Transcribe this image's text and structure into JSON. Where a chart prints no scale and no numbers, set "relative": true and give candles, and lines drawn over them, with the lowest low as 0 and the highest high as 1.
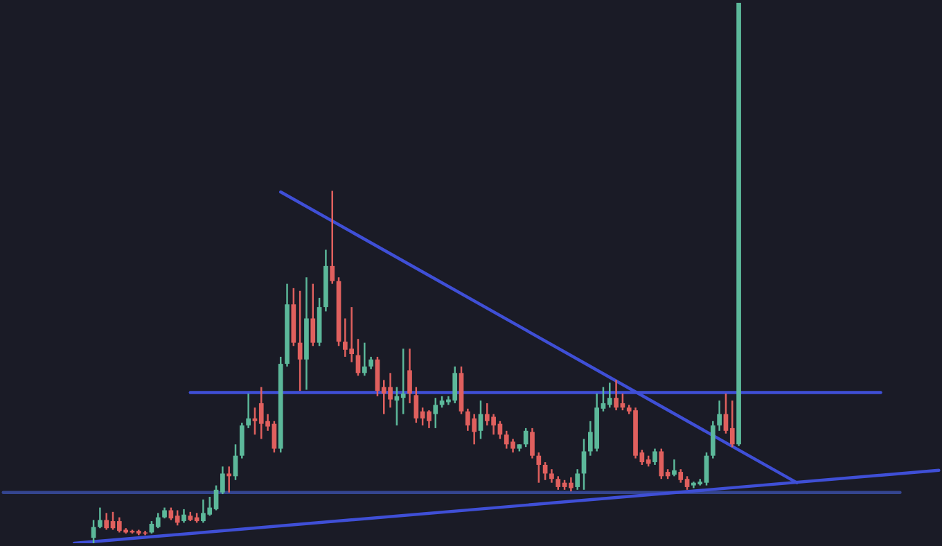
{
  "chart_data": {
    "type": "candlestick",
    "relative": true,
    "categories": [
      null,
      null,
      null,
      null,
      null,
      null,
      null,
      null,
      null,
      null,
      null,
      null,
      null,
      null,
      null,
      null,
      null,
      null,
      null,
      null,
      null,
      null,
      null,
      null,
      null,
      null,
      null,
      null,
      null,
      null,
      null,
      null,
      null,
      null,
      null,
      null,
      null,
      null,
      null,
      null,
      null,
      null,
      null,
      null,
      null,
      null,
      null,
      null,
      null,
      null,
      null,
      null,
      null,
      null,
      null,
      null,
      null,
      null,
      null,
      null,
      null,
      null,
      null,
      null,
      null,
      null,
      null,
      null,
      null,
      null,
      null,
      null,
      null,
      null,
      null,
      null,
      null,
      null,
      null,
      null,
      null,
      null,
      null,
      null,
      null,
      null,
      null,
      null,
      null,
      null,
      null,
      null,
      null,
      null,
      null,
      null,
      null,
      null,
      null,
      null,
      null,
      null,
      null,
      null,
      null,
      null,
      null,
      null,
      null,
      null,
      null,
      null,
      null,
      null,
      null,
      null,
      null,
      null,
      null,
      null,
      null,
      null,
      null,
      null,
      null,
      null,
      null,
      null,
      null,
      null,
      null,
      null,
      null,
      null,
      null,
      null,
      null,
      null,
      null,
      null,
      null,
      null,
      null,
      null,
      null,
      null
    ],
    "ohlc": [
      null,
      null,
      null,
      null,
      null,
      null,
      null,
      null,
      null,
      null,
      null,
      null,
      null,
      null,
      [
        0.01,
        0.043,
        0,
        0.03
      ],
      [
        0.03,
        0.066,
        0.028,
        0.043
      ],
      [
        0.043,
        0.056,
        0.025,
        0.028
      ],
      [
        0.041,
        0.058,
        0.025,
        0.028
      ],
      [
        0.041,
        0.048,
        0.02,
        0.023
      ],
      [
        0.025,
        0.028,
        0.018,
        0.02
      ],
      [
        0.023,
        0.025,
        0.018,
        0.02
      ],
      [
        0.023,
        0.025,
        0.015,
        0.018
      ],
      [
        0.02,
        0.023,
        0.015,
        0.018
      ],
      [
        0.02,
        0.041,
        0.018,
        0.036
      ],
      [
        0.03,
        0.056,
        0.028,
        0.048
      ],
      [
        0.048,
        0.066,
        0.046,
        0.061
      ],
      [
        0.061,
        0.066,
        0.043,
        0.046
      ],
      [
        0.051,
        0.061,
        0.033,
        0.038
      ],
      [
        0.041,
        0.063,
        0.038,
        0.053
      ],
      [
        0.051,
        0.058,
        0.041,
        0.043
      ],
      [
        0.048,
        0.056,
        0.038,
        0.041
      ],
      [
        0.041,
        0.081,
        0.038,
        0.056
      ],
      [
        0.053,
        0.086,
        0.051,
        0.066
      ],
      [
        0.063,
        0.107,
        0.061,
        0.099
      ],
      [
        0.094,
        0.142,
        0.091,
        0.129
      ],
      [
        0.129,
        0.142,
        0.094,
        0.124
      ],
      [
        0.124,
        0.183,
        0.117,
        0.162
      ],
      [
        0.162,
        0.223,
        0.157,
        0.218
      ],
      [
        0.218,
        0.277,
        0.213,
        0.231
      ],
      [
        0.231,
        0.251,
        0.201,
        0.226
      ],
      [
        0.259,
        0.289,
        0.193,
        0.221
      ],
      [
        0.226,
        0.239,
        0.208,
        0.216
      ],
      [
        0.221,
        0.226,
        0.168,
        0.175
      ],
      [
        0.175,
        0.345,
        0.168,
        0.332
      ],
      [
        0.332,
        0.48,
        0.327,
        0.442
      ],
      [
        0.442,
        0.472,
        0.365,
        0.371
      ],
      [
        0.371,
        0.467,
        0.282,
        0.34
      ],
      [
        0.34,
        0.492,
        0.284,
        0.416
      ],
      [
        0.416,
        0.48,
        0.365,
        0.371
      ],
      [
        0.371,
        0.454,
        0.365,
        0.437
      ],
      [
        0.437,
        0.543,
        0.429,
        0.513
      ],
      [
        0.513,
        0.652,
        0.48,
        0.485
      ],
      [
        0.485,
        0.492,
        0.365,
        0.373
      ],
      [
        0.373,
        0.416,
        0.345,
        0.358
      ],
      [
        0.36,
        0.437,
        0.335,
        0.35
      ],
      [
        0.348,
        0.378,
        0.31,
        0.315
      ],
      [
        0.315,
        0.371,
        0.31,
        0.327
      ],
      [
        0.327,
        0.345,
        0.322,
        0.34
      ],
      [
        0.34,
        0.345,
        0.272,
        0.282
      ],
      [
        0.289,
        0.302,
        0.239,
        0.277
      ],
      [
        0.289,
        0.315,
        0.251,
        0.266
      ],
      [
        0.264,
        0.289,
        0.218,
        0.272
      ],
      [
        0.269,
        0.36,
        0.239,
        0.277
      ],
      [
        0.32,
        0.36,
        0.259,
        0.277
      ],
      [
        0.274,
        0.289,
        0.223,
        0.231
      ],
      [
        0.244,
        0.251,
        0.218,
        0.231
      ],
      [
        0.244,
        0.246,
        0.213,
        0.226
      ],
      [
        0.239,
        0.269,
        0.213,
        0.256
      ],
      [
        0.256,
        0.272,
        0.251,
        0.264
      ],
      [
        0.261,
        0.272,
        0.256,
        0.266
      ],
      [
        0.264,
        0.327,
        0.259,
        0.315
      ],
      [
        0.315,
        0.327,
        0.239,
        0.244
      ],
      [
        0.244,
        0.249,
        0.208,
        0.218
      ],
      [
        0.231,
        0.239,
        0.183,
        0.206
      ],
      [
        0.208,
        0.264,
        0.193,
        0.239
      ],
      [
        0.239,
        0.259,
        0.218,
        0.226
      ],
      [
        0.234,
        0.239,
        0.201,
        0.218
      ],
      [
        0.221,
        0.226,
        0.193,
        0.201
      ],
      [
        0.201,
        0.208,
        0.175,
        0.183
      ],
      [
        0.188,
        0.193,
        0.168,
        0.175
      ],
      [
        0.175,
        0.183,
        0.17,
        0.183
      ],
      [
        0.183,
        0.213,
        0.178,
        0.208
      ],
      [
        0.206,
        0.213,
        0.157,
        0.162
      ],
      [
        0.162,
        0.168,
        0.112,
        0.145
      ],
      [
        0.145,
        0.15,
        0.117,
        0.129
      ],
      [
        0.129,
        0.137,
        0.112,
        0.119
      ],
      [
        0.119,
        0.124,
        0.099,
        0.104
      ],
      [
        0.112,
        0.117,
        0.099,
        0.104
      ],
      [
        0.112,
        0.122,
        0.096,
        0.102
      ],
      [
        0.104,
        0.137,
        0.099,
        0.129
      ],
      [
        0.129,
        0.193,
        0.099,
        0.17
      ],
      [
        0.17,
        0.226,
        0.162,
        0.206
      ],
      [
        0.175,
        0.277,
        0.17,
        0.251
      ],
      [
        0.249,
        0.289,
        0.244,
        0.259
      ],
      [
        0.256,
        0.297,
        0.251,
        0.269
      ],
      [
        0.269,
        0.302,
        0.246,
        0.251
      ],
      [
        0.259,
        0.277,
        0.246,
        0.251
      ],
      [
        0.251,
        0.256,
        0.239,
        0.244
      ],
      [
        0.246,
        0.251,
        0.157,
        0.162
      ],
      [
        0.168,
        0.173,
        0.145,
        0.15
      ],
      [
        0.155,
        0.162,
        0.142,
        0.147
      ],
      [
        0.15,
        0.175,
        0.145,
        0.17
      ],
      [
        0.17,
        0.175,
        0.119,
        0.124
      ],
      [
        0.132,
        0.137,
        0.119,
        0.124
      ],
      [
        0.127,
        0.155,
        0.124,
        0.135
      ],
      [
        0.132,
        0.137,
        0.112,
        0.117
      ],
      [
        0.119,
        0.124,
        0.099,
        0.104
      ],
      [
        0.107,
        0.114,
        0.102,
        0.112
      ],
      [
        0.109,
        0.119,
        0.107,
        0.114
      ],
      [
        0.112,
        0.168,
        0.107,
        0.162
      ],
      [
        0.162,
        0.226,
        0.157,
        0.218
      ],
      [
        0.218,
        0.264,
        0.208,
        0.239
      ],
      [
        0.239,
        0.277,
        0.203,
        0.208
      ],
      [
        0.213,
        0.264,
        0.178,
        0.183
      ],
      [
        0.183,
        1,
        0.18,
        1
      ],
      null,
      null,
      null,
      null,
      null,
      null,
      null,
      null,
      null,
      null,
      null,
      null,
      null,
      null,
      null,
      null,
      null,
      null,
      null,
      null,
      null,
      null,
      null,
      null,
      null,
      null,
      null,
      null,
      null,
      null,
      null
    ],
    "colors": [
      null,
      null,
      null,
      null,
      null,
      null,
      null,
      null,
      null,
      null,
      null,
      null,
      null,
      null,
      "#5cb89a",
      "#5cb89a",
      "#e0605e",
      "#e0605e",
      "#e0605e",
      "#e0605e",
      "#e0605e",
      "#e0605e",
      "#e0605e",
      "#5cb89a",
      "#5cb89a",
      "#5cb89a",
      "#e0605e",
      "#e0605e",
      "#5cb89a",
      "#e0605e",
      "#e0605e",
      "#5cb89a",
      "#5cb89a",
      "#5cb89a",
      "#5cb89a",
      "#e0605e",
      "#5cb89a",
      "#5cb89a",
      "#5cb89a",
      "#e0605e",
      "#e0605e",
      "#e0605e",
      "#e0605e",
      "#5cb89a",
      "#5cb89a",
      "#e0605e",
      "#e0605e",
      "#5cb89a",
      "#e0605e",
      "#5cb89a",
      "#5cb89a",
      "#e0605e",
      "#e0605e",
      "#e0605e",
      "#e0605e",
      "#e0605e",
      "#5cb89a",
      "#5cb89a",
      "#e0605e",
      "#e0605e",
      "#e0605e",
      "#5cb89a",
      "#5cb89a",
      "#e0605e",
      "#e0605e",
      "#e0605e",
      "#e0605e",
      "#5cb89a",
      "#5cb89a",
      "#5cb89a",
      "#5cb89a",
      "#e0605e",
      "#e0605e",
      "#e0605e",
      "#5cb89a",
      "#e0605e",
      "#e0605e",
      "#e0605e",
      "#e0605e",
      "#e0605e",
      "#5cb89a",
      "#5cb89a",
      "#e0605e",
      "#e0605e",
      "#e0605e",
      "#e0605e",
      "#e0605e",
      "#e0605e",
      "#e0605e",
      "#5cb89a",
      "#5cb89a",
      "#5cb89a",
      "#5cb89a",
      "#5cb89a",
      "#5cb89a",
      "#e0605e",
      "#e0605e",
      "#e0605e",
      "#e0605e",
      "#e0605e",
      "#e0605e",
      "#5cb89a",
      "#e0605e",
      "#e0605e",
      "#5cb89a",
      "#e0605e",
      "#e0605e",
      "#5cb89a",
      "#5cb89a",
      "#5cb89a",
      "#5cb89a",
      "#5cb89a",
      "#e0605e",
      "#e0605e",
      "#5cb89a",
      null,
      null,
      null,
      null,
      null,
      null,
      null,
      null,
      null,
      null,
      null,
      null,
      null,
      null,
      null,
      null,
      null,
      null,
      null,
      null,
      null,
      null,
      null,
      null,
      null,
      null,
      null,
      null,
      null,
      null,
      null
    ],
    "series": [
      {
        "type": "line",
        "color": "#3f4fd6",
        "values": [
          null,
          null,
          null,
          null,
          null,
          null,
          null,
          null,
          null,
          null,
          null,
          null,
          null,
          null,
          null,
          null,
          null,
          null,
          null,
          null,
          null,
          null,
          null,
          null,
          null,
          null,
          null,
          null,
          null,
          null,
          null,
          null,
          null,
          null,
          null,
          null,
          null,
          null,
          null,
          null,
          null,
          null,
          null,
          0.65,
          null,
          null,
          null,
          null,
          null,
          null,
          null,
          null,
          null,
          null,
          null,
          null,
          null,
          null,
          null,
          null,
          null,
          null,
          null,
          null,
          null,
          null,
          null,
          null,
          null,
          null,
          null,
          null,
          null,
          null,
          null,
          null,
          null,
          null,
          null,
          null,
          null,
          null,
          null,
          null,
          null,
          null,
          null,
          null,
          null,
          null,
          null,
          null,
          null,
          null,
          null,
          null,
          null,
          null,
          null,
          null,
          null,
          null,
          null,
          null,
          null,
          null,
          null,
          null,
          null,
          null,
          null,
          null,
          null,
          null,
          null,
          null,
          null,
          null,
          null,
          null,
          null,
          null,
          null,
          0.112,
          null,
          null,
          null,
          null,
          null,
          null,
          null,
          null,
          null,
          null,
          null,
          null,
          null,
          null,
          null,
          null,
          null,
          null,
          null,
          null,
          null,
          null
        ]
      },
      {
        "type": "line",
        "color": "#3f4fd6",
        "values": [
          null,
          null,
          null,
          null,
          null,
          null,
          null,
          null,
          null,
          null,
          null,
          null,
          null,
          null,
          null,
          null,
          null,
          null,
          null,
          null,
          null,
          null,
          null,
          null,
          null,
          null,
          null,
          null,
          null,
          0.279,
          null,
          null,
          null,
          null,
          null,
          null,
          null,
          null,
          null,
          null,
          null,
          null,
          null,
          null,
          null,
          null,
          null,
          null,
          null,
          null,
          null,
          null,
          null,
          null,
          null,
          null,
          null,
          null,
          null,
          null,
          null,
          null,
          null,
          null,
          null,
          null,
          null,
          null,
          null,
          null,
          null,
          null,
          null,
          null,
          null,
          null,
          null,
          null,
          null,
          null,
          null,
          null,
          null,
          null,
          null,
          null,
          null,
          null,
          null,
          null,
          null,
          null,
          null,
          null,
          null,
          null,
          null,
          null,
          null,
          null,
          null,
          null,
          null,
          null,
          null,
          null,
          null,
          null,
          null,
          null,
          null,
          null,
          null,
          null,
          null,
          null,
          null,
          null,
          null,
          null,
          null,
          null,
          null,
          null,
          null,
          null,
          null,
          null,
          null,
          null,
          null,
          null,
          null,
          null,
          null,
          null,
          0.279,
          null,
          null,
          null,
          null,
          null,
          null,
          null,
          null,
          null
        ]
      },
      {
        "type": "line",
        "color": "#34458f",
        "values": [
          0.094,
          null,
          null,
          null,
          null,
          null,
          null,
          null,
          null,
          null,
          null,
          null,
          null,
          null,
          null,
          null,
          null,
          null,
          null,
          null,
          null,
          null,
          null,
          null,
          null,
          null,
          null,
          null,
          null,
          null,
          null,
          null,
          null,
          null,
          null,
          null,
          null,
          null,
          null,
          null,
          null,
          null,
          null,
          null,
          null,
          null,
          null,
          null,
          null,
          null,
          null,
          null,
          null,
          null,
          null,
          null,
          null,
          null,
          null,
          null,
          null,
          null,
          null,
          null,
          null,
          null,
          null,
          null,
          null,
          null,
          null,
          null,
          null,
          null,
          null,
          null,
          null,
          null,
          null,
          null,
          null,
          null,
          null,
          null,
          null,
          null,
          null,
          null,
          null,
          null,
          null,
          null,
          null,
          null,
          null,
          null,
          null,
          null,
          null,
          null,
          null,
          null,
          null,
          null,
          null,
          null,
          null,
          null,
          null,
          null,
          null,
          null,
          null,
          null,
          null,
          null,
          null,
          null,
          null,
          null,
          null,
          null,
          null,
          null,
          null,
          null,
          null,
          null,
          null,
          null,
          null,
          null,
          null,
          null,
          null,
          null,
          null,
          null,
          null,
          0.094,
          null,
          null,
          null,
          null,
          null,
          null
        ]
      },
      {
        "type": "line",
        "color": "#3f4fd6",
        "values": [
          null,
          null,
          null,
          null,
          null,
          null,
          null,
          null,
          null,
          null,
          null,
          0,
          null,
          null,
          null,
          null,
          null,
          null,
          null,
          null,
          null,
          null,
          null,
          null,
          null,
          null,
          null,
          null,
          null,
          null,
          null,
          null,
          null,
          null,
          null,
          null,
          null,
          null,
          null,
          null,
          null,
          null,
          null,
          null,
          null,
          null,
          null,
          null,
          null,
          null,
          null,
          null,
          null,
          null,
          null,
          null,
          null,
          null,
          null,
          null,
          null,
          null,
          null,
          null,
          null,
          null,
          null,
          null,
          null,
          null,
          null,
          null,
          null,
          null,
          null,
          null,
          null,
          null,
          null,
          null,
          null,
          null,
          null,
          null,
          null,
          null,
          null,
          null,
          null,
          null,
          null,
          null,
          null,
          null,
          null,
          null,
          null,
          null,
          null,
          null,
          null,
          null,
          null,
          null,
          null,
          null,
          null,
          null,
          null,
          null,
          null,
          null,
          null,
          null,
          null,
          null,
          null,
          null,
          null,
          null,
          null,
          null,
          null,
          null,
          null,
          null,
          null,
          null,
          null,
          null,
          null,
          null,
          null,
          null,
          null,
          null,
          null,
          null,
          null,
          null,
          null,
          null,
          null,
          null,
          null,
          0.135
        ]
      }
    ]
  }
}
